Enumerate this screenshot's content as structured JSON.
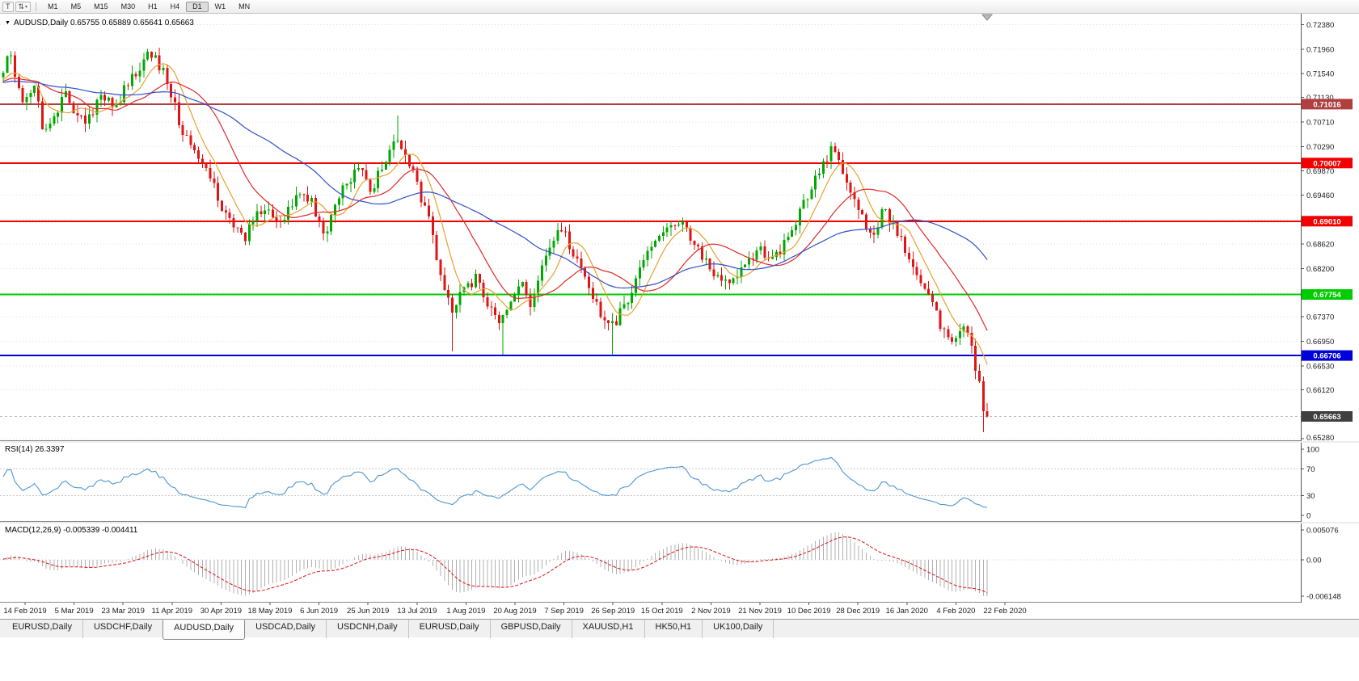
{
  "icons": {
    "expander": "▼",
    "arrows": "⇅",
    "caret": "▾",
    "chart_tool": "T"
  },
  "toolbar": {
    "timeframes": [
      "M1",
      "M5",
      "M15",
      "M30",
      "H1",
      "H4",
      "D1",
      "W1",
      "MN"
    ],
    "active_timeframe": "D1"
  },
  "chart": {
    "title": "AUDUSD,Daily 0.65755 0.65889 0.65641 0.65663",
    "price_axis_ticks": [
      "0.72380",
      "0.71960",
      "0.71540",
      "0.71130",
      "0.70710",
      "0.70290",
      "0.69870",
      "0.69460",
      "0.69040",
      "0.68620",
      "0.68200",
      "0.67790",
      "0.67370",
      "0.66950",
      "0.66530",
      "0.66120",
      "0.65280"
    ],
    "date_axis_ticks": [
      "14 Feb 2019",
      "5 Mar 2019",
      "23 Mar 2019",
      "11 Apr 2019",
      "30 Apr 2019",
      "18 May 2019",
      "6 Jun 2019",
      "25 Jun 2019",
      "13 Jul 2019",
      "1 Aug 2019",
      "20 Aug 2019",
      "7 Sep 2019",
      "26 Sep 2019",
      "15 Oct 2019",
      "2 Nov 2019",
      "21 Nov 2019",
      "10 Dec 2019",
      "28 Dec 2019",
      "16 Jan 2020",
      "4 Feb 2020",
      "22 Feb 2020"
    ],
    "price_range": {
      "top": 0.7258,
      "bottom": 0.6524
    }
  },
  "chart_data": [
    {
      "type": "candlestick",
      "symbol": "AUDUSD",
      "timeframe": "Daily",
      "bars": 253,
      "y_range": [
        0.6524,
        0.7258
      ],
      "last_ohlc": {
        "open": 0.65755,
        "high": 0.65889,
        "low": 0.65641,
        "close": 0.65663
      },
      "price_path": [
        [
          0,
          0.7138
        ],
        [
          2,
          0.7188
        ],
        [
          4,
          0.715
        ],
        [
          6,
          0.7095
        ],
        [
          9,
          0.713
        ],
        [
          11,
          0.7058
        ],
        [
          14,
          0.709
        ],
        [
          17,
          0.7118
        ],
        [
          20,
          0.7068
        ],
        [
          23,
          0.7085
        ],
        [
          26,
          0.712
        ],
        [
          29,
          0.7092
        ],
        [
          32,
          0.7128
        ],
        [
          35,
          0.716
        ],
        [
          38,
          0.7195
        ],
        [
          41,
          0.7168
        ],
        [
          44,
          0.7115
        ],
        [
          47,
          0.7042
        ],
        [
          50,
          0.7022
        ],
        [
          53,
          0.699
        ],
        [
          56,
          0.6938
        ],
        [
          59,
          0.6902
        ],
        [
          62,
          0.6868
        ],
        [
          65,
          0.6908
        ],
        [
          68,
          0.6932
        ],
        [
          71,
          0.6888
        ],
        [
          74,
          0.6928
        ],
        [
          77,
          0.6952
        ],
        [
          80,
          0.693
        ],
        [
          83,
          0.6882
        ],
        [
          86,
          0.6926
        ],
        [
          89,
          0.6972
        ],
        [
          92,
          0.6992
        ],
        [
          95,
          0.6952
        ],
        [
          98,
          0.7002
        ],
        [
          101,
          0.7044
        ],
        [
          104,
          0.7018
        ],
        [
          107,
          0.6955
        ],
        [
          110,
          0.6892
        ],
        [
          112,
          0.6832
        ],
        [
          114,
          0.6772
        ],
        [
          116,
          0.6748
        ],
        [
          119,
          0.6786
        ],
        [
          122,
          0.6802
        ],
        [
          125,
          0.6758
        ],
        [
          128,
          0.6722
        ],
        [
          131,
          0.6768
        ],
        [
          134,
          0.6792
        ],
        [
          136,
          0.6758
        ],
        [
          138,
          0.6818
        ],
        [
          141,
          0.6866
        ],
        [
          144,
          0.6886
        ],
        [
          147,
          0.6846
        ],
        [
          150,
          0.6796
        ],
        [
          153,
          0.6752
        ],
        [
          156,
          0.6712
        ],
        [
          159,
          0.6746
        ],
        [
          162,
          0.6782
        ],
        [
          165,
          0.6836
        ],
        [
          168,
          0.6872
        ],
        [
          171,
          0.6882
        ],
        [
          174,
          0.6906
        ],
        [
          177,
          0.6872
        ],
        [
          180,
          0.6836
        ],
        [
          183,
          0.6812
        ],
        [
          186,
          0.6792
        ],
        [
          189,
          0.6806
        ],
        [
          192,
          0.6832
        ],
        [
          195,
          0.6852
        ],
        [
          198,
          0.6832
        ],
        [
          201,
          0.6872
        ],
        [
          204,
          0.6902
        ],
        [
          207,
          0.6946
        ],
        [
          210,
          0.6992
        ],
        [
          213,
          0.703
        ],
        [
          215,
          0.7002
        ],
        [
          218,
          0.6952
        ],
        [
          221,
          0.6902
        ],
        [
          224,
          0.6872
        ],
        [
          226,
          0.6922
        ],
        [
          229,
          0.6892
        ],
        [
          232,
          0.6852
        ],
        [
          235,
          0.6802
        ],
        [
          238,
          0.6776
        ],
        [
          240,
          0.6732
        ],
        [
          242,
          0.6702
        ],
        [
          244,
          0.6682
        ],
        [
          246,
          0.6722
        ],
        [
          248,
          0.6702
        ],
        [
          250,
          0.6642
        ],
        [
          252,
          0.6566
        ]
      ],
      "wick_events": [
        [
          101,
          "high",
          0.7082
        ],
        [
          115,
          "low",
          0.6678
        ],
        [
          128,
          "low",
          0.6672
        ],
        [
          156,
          "low",
          0.6671
        ],
        [
          251,
          "low",
          0.6539
        ]
      ],
      "levels": [
        {
          "value": 0.71016,
          "label": "0.71016",
          "color": "#b04040"
        },
        {
          "value": 0.70007,
          "label": "0.70007",
          "color": "#f20000"
        },
        {
          "value": 0.6901,
          "label": "0.69010",
          "color": "#f20000"
        },
        {
          "value": 0.67754,
          "label": "0.67754",
          "color": "#00cc00"
        },
        {
          "value": 0.66706,
          "label": "0.66706",
          "color": "#0000d8"
        }
      ],
      "bid": {
        "value": 0.65663,
        "label": "0.65663",
        "color": "#3f3f3f"
      },
      "moving_averages": [
        {
          "period": 8,
          "type": "sma",
          "color": "#e8a030"
        },
        {
          "period": 20,
          "type": "sma",
          "color": "#e02828"
        },
        {
          "period": 45,
          "type": "sma",
          "color": "#3050c8"
        }
      ]
    },
    {
      "type": "line",
      "indicator": "RSI",
      "period": 14,
      "current": 26.3397,
      "levels": [
        70,
        30
      ],
      "range": [
        0,
        100
      ]
    },
    {
      "type": "bar",
      "indicator": "MACD",
      "params": [
        12,
        26,
        9
      ],
      "current_macd": -0.005339,
      "current_signal": -0.004411,
      "range": [
        -0.006148,
        0.005076
      ]
    }
  ],
  "rsi_panel": {
    "label": "RSI(14) 26.3397",
    "ticks": [
      "100",
      "70",
      "30",
      "0"
    ]
  },
  "macd_panel": {
    "label": "MACD(12,26,9) -0.005339 -0.004411",
    "ticks": [
      "0.005076",
      "0.00",
      "-0.006148"
    ]
  },
  "tabs": {
    "items": [
      "EURUSD,Daily",
      "USDCHF,Daily",
      "AUDUSD,Daily",
      "USDCAD,Daily",
      "USDCNH,Daily",
      "EURUSD,Daily",
      "GBPUSD,Daily",
      "XAUUSD,H1",
      "HK50,H1",
      "UK100,Daily"
    ],
    "active_index": 2
  },
  "colors": {
    "bull": "#00a800",
    "bear": "#e01414",
    "rsi_line": "#4e96d2",
    "macd_hist": "#b0b0b0",
    "macd_signal": "#e01010",
    "grid": "#dedede",
    "axis_text": "#1a1a1a"
  }
}
